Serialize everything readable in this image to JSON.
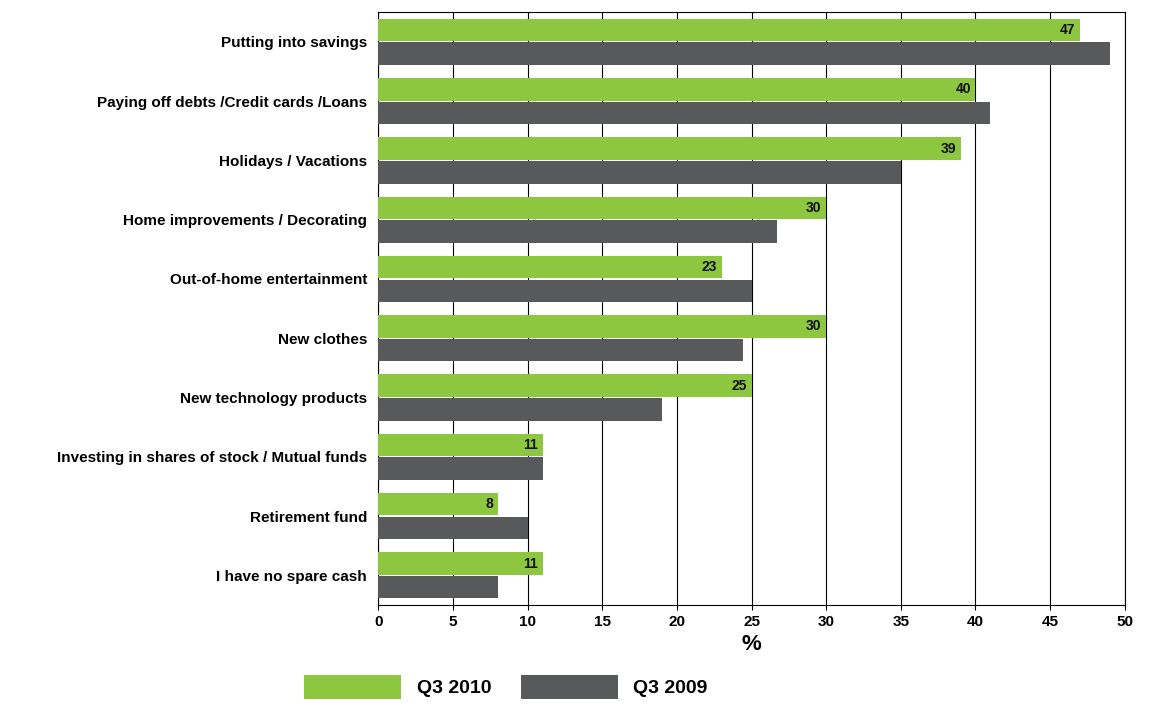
{
  "chart_data": {
    "type": "bar",
    "orientation": "horizontal",
    "categories": [
      "Putting into savings",
      "Paying off debts /Credit cards /Loans",
      "Holidays / Vacations",
      "Home improvements / Decorating",
      "Out-of-home entertainment",
      "New clothes",
      "New technology products",
      "Investing in shares of stock / Mutual funds",
      "Retirement fund",
      "I have no spare cash"
    ],
    "series": [
      {
        "name": "Q3 2010",
        "color": "#8dc63f",
        "values": [
          47,
          40,
          39,
          30,
          23,
          30,
          25,
          11,
          8,
          11
        ],
        "data_labels": true
      },
      {
        "name": "Q3 2009",
        "color": "#58595b",
        "values": [
          49,
          41,
          35,
          26.7,
          25,
          24.4,
          19,
          11,
          10,
          8
        ]
      }
    ],
    "x_label": "%",
    "xlim": [
      0,
      50
    ],
    "xticks": [
      0,
      5,
      10,
      15,
      20,
      25,
      30,
      35,
      40,
      45,
      50
    ],
    "grid": true,
    "legend": "lower center"
  }
}
